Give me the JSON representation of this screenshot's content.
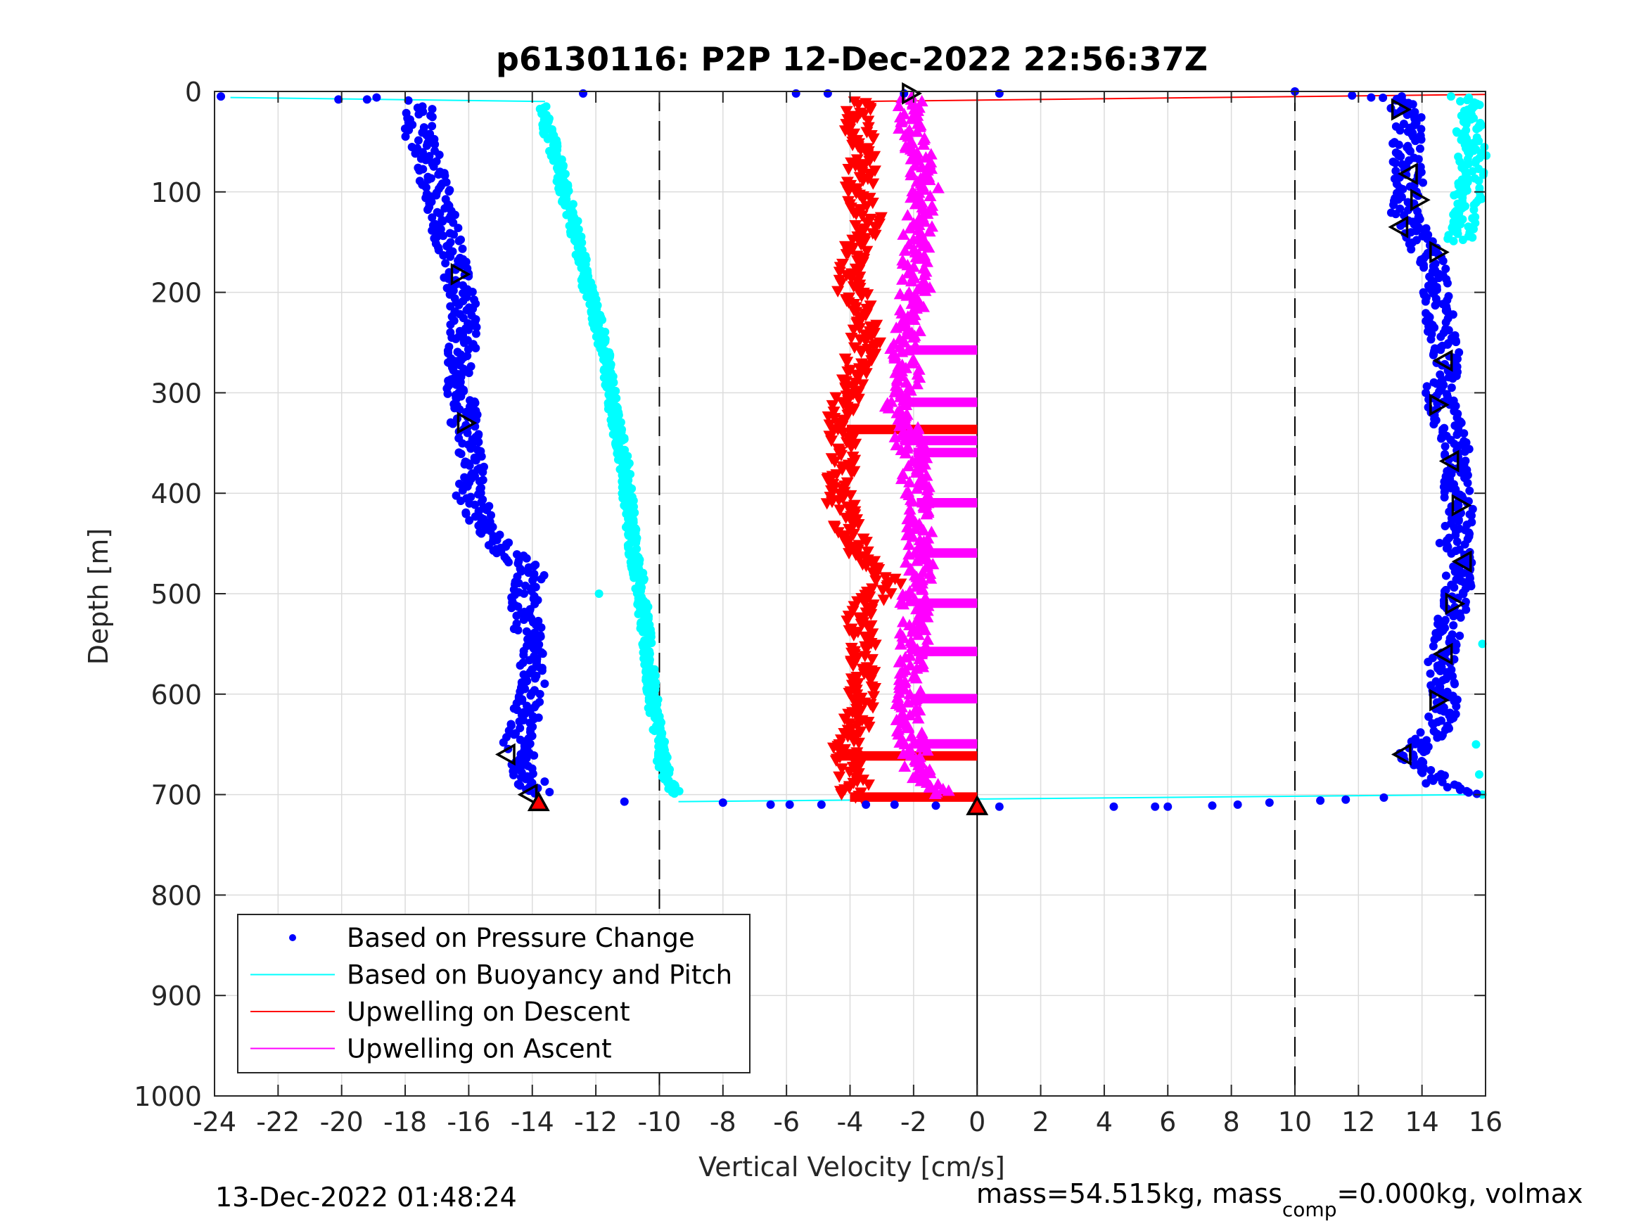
{
  "chart_data": {
    "type": "scatter",
    "title": "p6130116: P2P 12-Dec-2022 22:56:37Z",
    "xlabel": "Vertical Velocity [cm/s]",
    "ylabel": "Depth [m]",
    "xlim": [
      -24,
      16
    ],
    "ylim": [
      0,
      1000
    ],
    "y_reversed": true,
    "xticks": [
      "-24",
      "-22",
      "-20",
      "-18",
      "-16",
      "-14",
      "-12",
      "-10",
      "-8",
      "-6",
      "-4",
      "-2",
      "0",
      "2",
      "4",
      "6",
      "8",
      "10",
      "12",
      "14",
      "16"
    ],
    "yticks": [
      "0",
      "100",
      "200",
      "300",
      "400",
      "500",
      "600",
      "700",
      "800",
      "900",
      "1000"
    ],
    "grid": true,
    "reference_lines": {
      "dashed": [
        -10,
        10
      ],
      "solid": [
        0
      ]
    },
    "legend": {
      "placement": "bottom-left",
      "entries": [
        {
          "label": "Based on Pressure Change",
          "color": "#0000ff",
          "marker": "dot"
        },
        {
          "label": "Based on Buoyancy and Pitch",
          "color": "#00ffff",
          "marker": "line"
        },
        {
          "label": "Upwelling on Descent",
          "color": "#ff0000",
          "marker": "line"
        },
        {
          "label": "Upwelling on Ascent",
          "color": "#ff00ff",
          "marker": "line"
        }
      ]
    },
    "series": [
      {
        "name": "Based on Pressure Change",
        "color": "#0000ff",
        "profiles": {
          "descent": [
            [
              -17.5,
              15
            ],
            [
              -17.6,
              40
            ],
            [
              -17.3,
              70
            ],
            [
              -17.0,
              100
            ],
            [
              -16.8,
              130
            ],
            [
              -16.5,
              160
            ],
            [
              -16.4,
              190
            ],
            [
              -16.1,
              220
            ],
            [
              -16.2,
              250
            ],
            [
              -16.3,
              280
            ],
            [
              -16.2,
              310
            ],
            [
              -16.1,
              340
            ],
            [
              -15.8,
              370
            ],
            [
              -16.0,
              400
            ],
            [
              -15.5,
              430
            ],
            [
              -14.8,
              460
            ],
            [
              -14.0,
              480
            ],
            [
              -14.3,
              500
            ],
            [
              -14.1,
              540
            ],
            [
              -13.9,
              580
            ],
            [
              -14.2,
              620
            ],
            [
              -14.5,
              650
            ],
            [
              -14.2,
              680
            ],
            [
              -13.8,
              700
            ]
          ],
          "ascent": [
            [
              13.2,
              5
            ],
            [
              13.6,
              30
            ],
            [
              13.5,
              60
            ],
            [
              13.6,
              90
            ],
            [
              13.4,
              120
            ],
            [
              14.0,
              150
            ],
            [
              14.4,
              180
            ],
            [
              14.5,
              210
            ],
            [
              14.6,
              240
            ],
            [
              14.8,
              270
            ],
            [
              14.5,
              300
            ],
            [
              14.8,
              330
            ],
            [
              15.1,
              360
            ],
            [
              15.0,
              390
            ],
            [
              15.2,
              420
            ],
            [
              15.0,
              450
            ],
            [
              15.2,
              480
            ],
            [
              15.0,
              510
            ],
            [
              14.8,
              540
            ],
            [
              14.6,
              570
            ],
            [
              14.7,
              600
            ],
            [
              14.6,
              630
            ],
            [
              13.6,
              660
            ],
            [
              14.6,
              690
            ],
            [
              15.8,
              700
            ]
          ]
        },
        "surface_points": [
          [
            -23.8,
            5
          ],
          [
            -20.1,
            8
          ],
          [
            -19.2,
            8
          ],
          [
            -18.9,
            6
          ],
          [
            -17.9,
            9
          ],
          [
            -12.4,
            2
          ],
          [
            -5.7,
            2
          ],
          [
            -4.7,
            2
          ],
          [
            -2.3,
            2
          ],
          [
            0.7,
            2
          ],
          [
            10.0,
            0
          ],
          [
            11.8,
            4
          ],
          [
            12.4,
            6
          ]
        ],
        "bottom_points": [
          [
            -11.1,
            707
          ],
          [
            -8.0,
            708
          ],
          [
            -6.5,
            710
          ],
          [
            -5.9,
            710
          ],
          [
            -4.9,
            710
          ],
          [
            -3.5,
            710
          ],
          [
            -2.6,
            710
          ],
          [
            -1.3,
            711
          ],
          [
            0.7,
            712
          ],
          [
            4.3,
            712
          ],
          [
            5.6,
            712
          ],
          [
            6.0,
            712
          ],
          [
            7.4,
            711
          ],
          [
            8.2,
            710
          ],
          [
            9.2,
            708
          ],
          [
            10.8,
            706
          ],
          [
            11.6,
            705
          ],
          [
            12.8,
            703
          ]
        ]
      },
      {
        "name": "Based on Buoyancy and Pitch",
        "color": "#00ffff",
        "profiles": {
          "descent": [
            [
              -13.6,
              15
            ],
            [
              -13.5,
              40
            ],
            [
              -13.2,
              70
            ],
            [
              -13.0,
              100
            ],
            [
              -12.7,
              130
            ],
            [
              -12.5,
              160
            ],
            [
              -12.3,
              190
            ],
            [
              -12.0,
              220
            ],
            [
              -11.8,
              250
            ],
            [
              -11.6,
              280
            ],
            [
              -11.5,
              310
            ],
            [
              -11.3,
              340
            ],
            [
              -11.1,
              370
            ],
            [
              -11.0,
              400
            ],
            [
              -10.9,
              430
            ],
            [
              -10.8,
              460
            ],
            [
              -10.6,
              490
            ],
            [
              -10.5,
              520
            ],
            [
              -10.4,
              550
            ],
            [
              -10.3,
              580
            ],
            [
              -10.2,
              610
            ],
            [
              -10.0,
              640
            ],
            [
              -9.9,
              670
            ],
            [
              -9.5,
              700
            ]
          ],
          "ascent": [
            [
              15.3,
              5
            ],
            [
              15.5,
              30
            ],
            [
              15.6,
              60
            ],
            [
              15.5,
              90
            ],
            [
              15.4,
              120
            ],
            [
              15.2,
              150
            ]
          ]
        },
        "lines": [
          [
            [
              -23.5,
              6
            ],
            [
              -13.6,
              10
            ]
          ],
          [
            [
              -9.4,
              707
            ],
            [
              15.9,
              700
            ]
          ]
        ],
        "isolated_points": [
          [
            -11.9,
            500
          ],
          [
            15.9,
            550
          ],
          [
            15.7,
            650
          ],
          [
            15.8,
            680
          ],
          [
            15.9,
            700
          ]
        ]
      },
      {
        "name": "Upwelling on Descent",
        "color": "#ff0000",
        "profile": [
          [
            -3.8,
            10
          ],
          [
            -3.7,
            40
          ],
          [
            -3.6,
            70
          ],
          [
            -3.7,
            100
          ],
          [
            -3.4,
            130
          ],
          [
            -3.8,
            160
          ],
          [
            -4.1,
            190
          ],
          [
            -3.6,
            220
          ],
          [
            -3.5,
            250
          ],
          [
            -3.9,
            280
          ],
          [
            -4.3,
            320
          ],
          [
            -4.2,
            360
          ],
          [
            -4.4,
            400
          ],
          [
            -4.1,
            430
          ],
          [
            -3.6,
            460
          ],
          [
            -2.8,
            490
          ],
          [
            -3.7,
            520
          ],
          [
            -3.5,
            560
          ],
          [
            -3.6,
            600
          ],
          [
            -3.8,
            630
          ],
          [
            -4.2,
            660
          ],
          [
            -3.8,
            690
          ],
          [
            -4.0,
            705
          ]
        ],
        "lines": [
          [
            [
              -3.8,
              10
            ],
            [
              16,
              3
            ]
          ]
        ],
        "spikes": [
          [
            -4.1,
            337,
            0
          ],
          [
            -4.3,
            662,
            0
          ],
          [
            -4.0,
            703,
            0
          ]
        ],
        "marker": [
          0,
          712
        ]
      },
      {
        "name": "Upwelling on Ascent",
        "color": "#ff00ff",
        "profile": [
          [
            -2.2,
            5
          ],
          [
            -2.1,
            40
          ],
          [
            -1.8,
            70
          ],
          [
            -1.6,
            100
          ],
          [
            -1.8,
            130
          ],
          [
            -2.0,
            160
          ],
          [
            -1.9,
            190
          ],
          [
            -2.1,
            220
          ],
          [
            -2.3,
            250
          ],
          [
            -2.2,
            280
          ],
          [
            -2.5,
            310
          ],
          [
            -2.2,
            340
          ],
          [
            -2.0,
            370
          ],
          [
            -1.9,
            400
          ],
          [
            -1.8,
            430
          ],
          [
            -1.8,
            460
          ],
          [
            -1.9,
            490
          ],
          [
            -2.0,
            520
          ],
          [
            -2.0,
            560
          ],
          [
            -2.1,
            600
          ],
          [
            -2.1,
            640
          ],
          [
            -1.8,
            680
          ],
          [
            -1.2,
            700
          ]
        ],
        "spikes": [
          [
            -2.2,
            258,
            0
          ],
          [
            -2.4,
            310,
            0
          ],
          [
            -2.2,
            348,
            0
          ],
          [
            -2.0,
            360,
            0
          ],
          [
            -1.9,
            410,
            0
          ],
          [
            -1.8,
            460,
            0
          ],
          [
            -1.9,
            510,
            0
          ],
          [
            -2.0,
            558,
            0
          ],
          [
            -2.1,
            605,
            0
          ],
          [
            -2.1,
            650,
            0
          ]
        ]
      }
    ],
    "glider_markers": {
      "descent": [
        [
          -2.1,
          2,
          "right"
        ],
        [
          -16.3,
          182,
          "right"
        ],
        [
          -16.1,
          330,
          "right"
        ],
        [
          -14.8,
          660,
          "left"
        ],
        [
          -14.1,
          700,
          "left"
        ],
        [
          -13.8,
          708,
          "up"
        ]
      ],
      "ascent": [
        [
          13.3,
          18,
          "right"
        ],
        [
          13.6,
          82,
          "left"
        ],
        [
          13.9,
          108,
          "right"
        ],
        [
          13.3,
          135,
          "left"
        ],
        [
          14.5,
          160,
          "right"
        ],
        [
          14.7,
          268,
          "left"
        ],
        [
          14.5,
          312,
          "right"
        ],
        [
          14.9,
          368,
          "left"
        ],
        [
          15.2,
          412,
          "right"
        ],
        [
          15.3,
          468,
          "left"
        ],
        [
          15.0,
          510,
          "right"
        ],
        [
          14.7,
          560,
          "left"
        ],
        [
          14.5,
          606,
          "right"
        ],
        [
          13.4,
          660,
          "left"
        ],
        [
          0,
          712,
          "up"
        ]
      ]
    }
  },
  "footer": {
    "timestamp": "13-Dec-2022 01:48:24",
    "mass_prefix": "mass=54.515kg, mass",
    "mass_sub": "comp",
    "mass_suffix": "=0.000kg, volmax"
  }
}
